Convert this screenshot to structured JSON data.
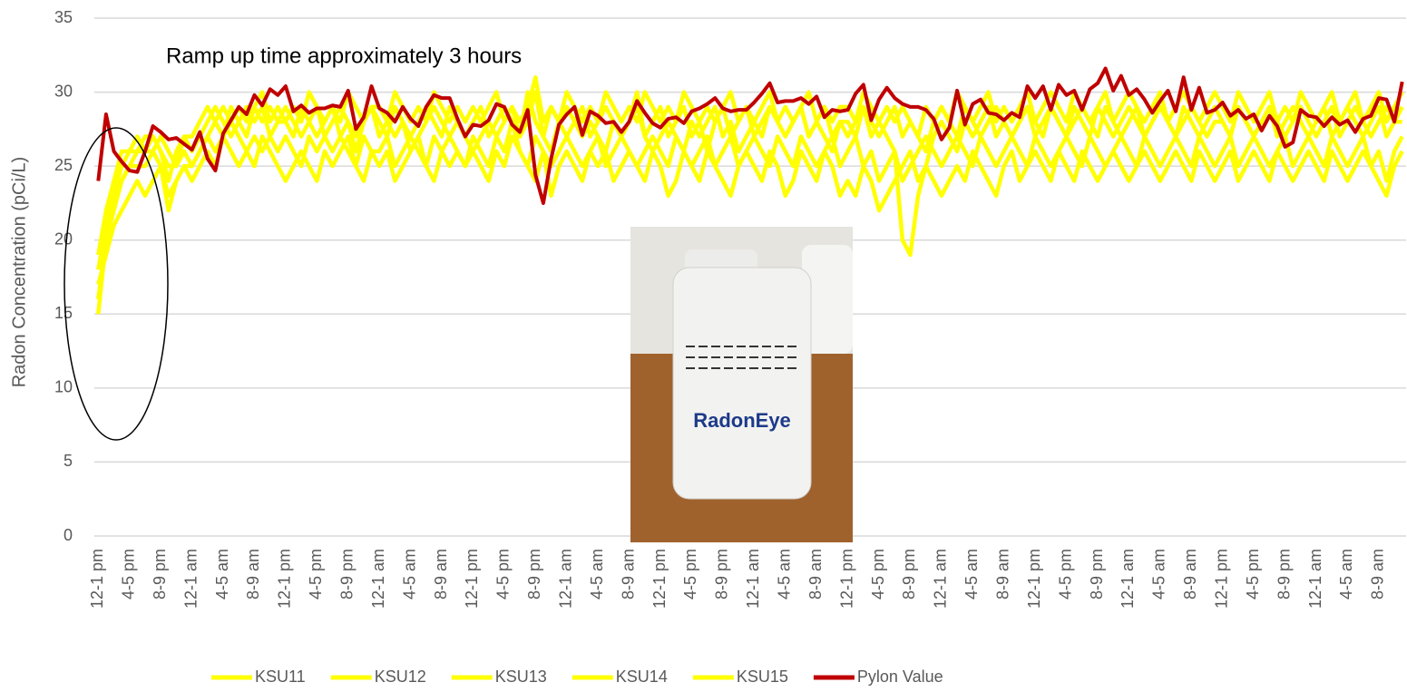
{
  "chart_data": {
    "type": "line",
    "annotation": "Ramp up time approximately 3 hours",
    "y_label": "Radon Concentration (pCi/L)",
    "photo_text": "RadonEye",
    "ylim": [
      0,
      35
    ],
    "yticks": [
      0,
      5,
      10,
      15,
      20,
      25,
      30,
      35
    ],
    "grid": true,
    "legend": "bottom",
    "categories": [
      "12-1 pm",
      null,
      null,
      null,
      "4-5 pm",
      null,
      null,
      null,
      "8-9 pm",
      null,
      null,
      null,
      "12-1 am",
      null,
      null,
      null,
      "4-5 am",
      null,
      null,
      null,
      "8-9 am",
      null,
      null,
      null,
      "12-1 pm",
      null,
      null,
      null,
      "4-5 pm",
      null,
      null,
      null,
      "8-9 pm",
      null,
      null,
      null,
      "12-1 am",
      null,
      null,
      null,
      "4-5 am",
      null,
      null,
      null,
      "8-9 am",
      null,
      null,
      null,
      "12-1 pm",
      null,
      null,
      null,
      "4-5 pm",
      null,
      null,
      null,
      "8-9 pm",
      null,
      null,
      null,
      "12-1 am",
      null,
      null,
      null,
      "4-5 am",
      null,
      null,
      null,
      "8-9 am",
      null,
      null,
      null,
      "12-1 pm",
      null,
      null,
      null,
      "4-5 pm",
      null,
      null,
      null,
      "8-9 pm",
      null,
      null,
      null,
      "12-1 am",
      null,
      null,
      null,
      "4-5 am",
      null,
      null,
      null,
      "8-9 am",
      null,
      null,
      null,
      "12-1 pm",
      null,
      null,
      null,
      "4-5 pm",
      null,
      null,
      null,
      "8-9 pm",
      null,
      null,
      null,
      "12-1 am",
      null,
      null,
      null,
      "4-5 am",
      null,
      null,
      null,
      "8-9 am",
      null,
      null,
      null,
      "12-1 pm",
      null,
      null,
      null,
      "4-5 pm",
      null,
      null,
      null,
      "8-9 pm",
      null,
      null,
      null,
      "12-1 am",
      null,
      null,
      null,
      "4-5 am",
      null,
      null,
      null,
      "8-9 am",
      null,
      null,
      null,
      "12-1 pm",
      null,
      null,
      null,
      "4-5 pm",
      null,
      null,
      null,
      "8-9 pm",
      null,
      null,
      null,
      "12-1 am",
      null,
      null,
      null,
      "4-5 am",
      null,
      null,
      null,
      "8-9 am",
      null,
      null,
      null
    ],
    "series": [
      {
        "name": "KSU11",
        "color": "#ffff00",
        "values": [
          15,
          20,
          22,
          24,
          25,
          26,
          26,
          27,
          26,
          25,
          25,
          26,
          25,
          26,
          27,
          28,
          27,
          29,
          28,
          27,
          29,
          28,
          29,
          28,
          28,
          27,
          29,
          28,
          27,
          28,
          29,
          27,
          28,
          26,
          28,
          29,
          27,
          28,
          27,
          28,
          26,
          27,
          28,
          29,
          28,
          27,
          28,
          27,
          26,
          27,
          28,
          27,
          28,
          29,
          27,
          28,
          30,
          27,
          26,
          28,
          29,
          28,
          27,
          28,
          27,
          26,
          28,
          27,
          28,
          29,
          27,
          26,
          27,
          28,
          27,
          26,
          28,
          27,
          28,
          29,
          27,
          28,
          26,
          27,
          28,
          27,
          29,
          28,
          27,
          28,
          29,
          27,
          28,
          27,
          26,
          28,
          27,
          28,
          29,
          27,
          28,
          27,
          26,
          20,
          19,
          23,
          25,
          27,
          28,
          27,
          26,
          28,
          27,
          28,
          29,
          27,
          28,
          27,
          28,
          29,
          28,
          27,
          29,
          28,
          27,
          28,
          29,
          28,
          27,
          29,
          28,
          27,
          28,
          29,
          27,
          28,
          29,
          28,
          27,
          28,
          29,
          28,
          27,
          28,
          28,
          27,
          29,
          28,
          27,
          28,
          29,
          28,
          27,
          28,
          29,
          28,
          27,
          28,
          29,
          27,
          28,
          29,
          28,
          27,
          28,
          29,
          28,
          29
        ]
      },
      {
        "name": "KSU12",
        "color": "#ffff00",
        "values": [
          17,
          19,
          21,
          22,
          23,
          24,
          23,
          24,
          25,
          22,
          24,
          25,
          24,
          25,
          26,
          25,
          27,
          26,
          25,
          26,
          25,
          27,
          26,
          25,
          24,
          25,
          26,
          25,
          24,
          26,
          25,
          26,
          27,
          25,
          24,
          26,
          25,
          26,
          24,
          25,
          26,
          27,
          25,
          24,
          26,
          25,
          26,
          25,
          26,
          25,
          24,
          26,
          25,
          27,
          26,
          25,
          24,
          26,
          23,
          25,
          26,
          25,
          24,
          26,
          25,
          26,
          24,
          25,
          26,
          25,
          24,
          26,
          25,
          23,
          24,
          26,
          25,
          24,
          26,
          25,
          24,
          23,
          25,
          26,
          25,
          24,
          26,
          25,
          23,
          24,
          26,
          25,
          24,
          26,
          25,
          23,
          24,
          23,
          25,
          24,
          22,
          23,
          24,
          25,
          26,
          24,
          25,
          24,
          23,
          24,
          25,
          24,
          26,
          25,
          24,
          23,
          25,
          26,
          24,
          25,
          26,
          25,
          24,
          26,
          25,
          24,
          26,
          25,
          24,
          25,
          26,
          25,
          24,
          25,
          26,
          25,
          24,
          25,
          26,
          25,
          24,
          26,
          25,
          24,
          25,
          26,
          24,
          25,
          26,
          25,
          24,
          26,
          25,
          24,
          25,
          26,
          25,
          24,
          26,
          25,
          24,
          25,
          26,
          25,
          24,
          23,
          25,
          26
        ]
      },
      {
        "name": "KSU13",
        "color": "#ffff00",
        "values": [
          19,
          22,
          24,
          26,
          26,
          27,
          26,
          26,
          27,
          26,
          25,
          27,
          26,
          27,
          28,
          29,
          28,
          27,
          28,
          29,
          28,
          29,
          27,
          28,
          29,
          28,
          27,
          28,
          29,
          27,
          28,
          29,
          28,
          27,
          28,
          29,
          28,
          27,
          29,
          28,
          27,
          28,
          29,
          28,
          27,
          29,
          28,
          27,
          28,
          29,
          27,
          28,
          29,
          28,
          27,
          30,
          28,
          27,
          29,
          28,
          27,
          28,
          29,
          27,
          28,
          29,
          28,
          27,
          28,
          30,
          27,
          28,
          29,
          27,
          28,
          29,
          27,
          28,
          26,
          28,
          29,
          27,
          28,
          29,
          27,
          28,
          29,
          28,
          27,
          28,
          29,
          27,
          28,
          29,
          27,
          28,
          28,
          27,
          29,
          28,
          27,
          28,
          29,
          27,
          28,
          27,
          26,
          28,
          29,
          28,
          27,
          29,
          28,
          27,
          28,
          29,
          28,
          27,
          28,
          29,
          27,
          28,
          29,
          28,
          27,
          29,
          28,
          27,
          29,
          28,
          27,
          28,
          29,
          28,
          27,
          28,
          29,
          28,
          27,
          29,
          28,
          27,
          28,
          29,
          28,
          27,
          29,
          28,
          27,
          28,
          29,
          27,
          28,
          29,
          28,
          27,
          28,
          29,
          27,
          28,
          29,
          28,
          27,
          28,
          29,
          27,
          28,
          28
        ]
      },
      {
        "name": "KSU14",
        "color": "#ffff00",
        "values": [
          18,
          21,
          23,
          24,
          25,
          25,
          25,
          26,
          25,
          23,
          24,
          25,
          25,
          26,
          27,
          26,
          27,
          28,
          27,
          26,
          27,
          26,
          27,
          26,
          27,
          26,
          25,
          27,
          26,
          27,
          26,
          27,
          26,
          25,
          27,
          26,
          26,
          27,
          25,
          26,
          27,
          26,
          25,
          27,
          26,
          27,
          26,
          25,
          27,
          26,
          25,
          27,
          26,
          28,
          26,
          25,
          27,
          26,
          25,
          26,
          27,
          26,
          25,
          26,
          27,
          25,
          26,
          27,
          26,
          25,
          26,
          27,
          26,
          25,
          27,
          26,
          25,
          26,
          27,
          25,
          26,
          27,
          25,
          26,
          27,
          26,
          25,
          27,
          26,
          25,
          27,
          26,
          25,
          26,
          27,
          25,
          26,
          27,
          25,
          26,
          24,
          25,
          26,
          24,
          25,
          26,
          27,
          26,
          25,
          26,
          27,
          26,
          25,
          27,
          26,
          25,
          26,
          27,
          26,
          25,
          27,
          26,
          25,
          26,
          27,
          26,
          25,
          27,
          26,
          25,
          26,
          27,
          26,
          25,
          27,
          26,
          25,
          26,
          27,
          26,
          25,
          27,
          26,
          25,
          26,
          27,
          25,
          26,
          27,
          26,
          25,
          26,
          27,
          25,
          26,
          27,
          26,
          25,
          27,
          26,
          25,
          26,
          27,
          25,
          26,
          24,
          26,
          27
        ]
      },
      {
        "name": "KSU15",
        "color": "#ffff00",
        "values": [
          16,
          20,
          23,
          25,
          26,
          26,
          27,
          27,
          26,
          24,
          26,
          27,
          27,
          28,
          29,
          28,
          29,
          28,
          29,
          28,
          29,
          30,
          28,
          29,
          28,
          29,
          28,
          30,
          29,
          28,
          29,
          28,
          30,
          29,
          28,
          29,
          29,
          28,
          30,
          29,
          28,
          29,
          28,
          30,
          29,
          28,
          29,
          28,
          29,
          28,
          29,
          30,
          28,
          29,
          28,
          29,
          31,
          28,
          29,
          28,
          30,
          29,
          28,
          29,
          28,
          30,
          29,
          28,
          29,
          28,
          30,
          29,
          28,
          29,
          28,
          30,
          29,
          28,
          29,
          28,
          29,
          30,
          28,
          29,
          28,
          29,
          30,
          28,
          29,
          28,
          29,
          30,
          28,
          29,
          28,
          29,
          29,
          28,
          30,
          29,
          28,
          29,
          28,
          29,
          28,
          27,
          29,
          28,
          29,
          28,
          30,
          29,
          28,
          29,
          30,
          28,
          29,
          28,
          29,
          30,
          28,
          29,
          30,
          29,
          28,
          30,
          29,
          28,
          29,
          30,
          28,
          29,
          30,
          29,
          28,
          29,
          30,
          28,
          29,
          30,
          29,
          28,
          29,
          30,
          29,
          28,
          30,
          29,
          28,
          29,
          30,
          28,
          29,
          28,
          30,
          29,
          28,
          29,
          30,
          28,
          29,
          30,
          28,
          29,
          30,
          28,
          29,
          30
        ]
      },
      {
        "name": "Pylon Value",
        "color": "#c00000",
        "values": [
          24.0,
          28.5,
          26.0,
          25.3,
          24.7,
          24.6,
          26.0,
          27.7,
          27.3,
          26.8,
          26.9,
          26.5,
          26.1,
          27.3,
          25.5,
          24.7,
          27.2,
          28.1,
          29.0,
          28.5,
          29.8,
          29.1,
          30.2,
          29.8,
          30.4,
          28.7,
          29.1,
          28.6,
          28.9,
          28.9,
          29.1,
          29.0,
          30.1,
          27.5,
          28.3,
          30.4,
          28.9,
          28.6,
          28.0,
          29.0,
          28.2,
          27.7,
          29.0,
          29.8,
          29.6,
          29.6,
          28.2,
          27.0,
          27.8,
          27.7,
          28.1,
          29.2,
          29.0,
          27.8,
          27.3,
          28.8,
          24.4,
          22.5,
          25.5,
          27.8,
          28.5,
          29.0,
          27.1,
          28.7,
          28.4,
          27.9,
          28.0,
          27.3,
          28.0,
          29.4,
          28.6,
          27.9,
          27.6,
          28.2,
          28.3,
          27.9,
          28.7,
          28.9,
          29.2,
          29.6,
          28.9,
          28.7,
          28.8,
          28.8,
          29.3,
          29.9,
          30.6,
          29.3,
          29.4,
          29.4,
          29.6,
          29.2,
          29.7,
          28.3,
          28.8,
          28.7,
          28.8,
          29.9,
          30.5,
          28.1,
          29.5,
          30.3,
          29.6,
          29.2,
          29.0,
          29.0,
          28.8,
          28.2,
          26.8,
          27.6,
          30.1,
          27.8,
          29.2,
          29.5,
          28.6,
          28.5,
          28.1,
          28.6,
          28.3,
          30.4,
          29.6,
          30.4,
          28.8,
          30.5,
          29.8,
          30.1,
          28.8,
          30.2,
          30.6,
          31.6,
          30.1,
          31.1,
          29.8,
          30.2,
          29.5,
          28.6,
          29.4,
          30.1,
          28.7,
          31.0,
          28.8,
          30.3,
          28.6,
          28.8,
          29.3,
          28.4,
          28.8,
          28.2,
          28.5,
          27.4,
          28.4,
          27.7,
          26.3,
          26.6,
          28.8,
          28.4,
          28.3,
          27.7,
          28.3,
          27.8,
          28.1,
          27.3,
          28.2,
          28.4,
          29.6,
          29.5,
          28.0,
          30.7
        ]
      }
    ]
  }
}
